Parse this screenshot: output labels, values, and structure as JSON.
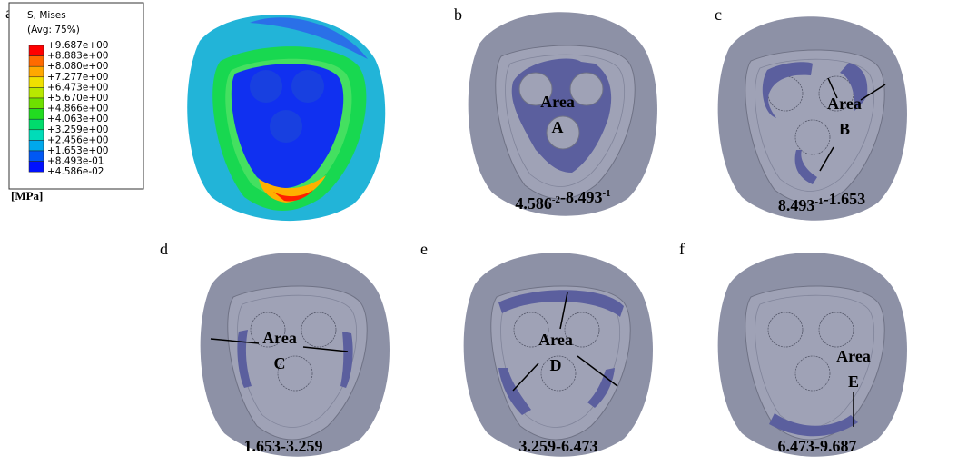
{
  "figure": {
    "legend": {
      "title": "S, Mises",
      "subtitle": "(Avg: 75%)",
      "labels": [
        "+9.687e+00",
        "+8.883e+00",
        "+8.080e+00",
        "+7.277e+00",
        "+6.473e+00",
        "+5.670e+00",
        "+4.866e+00",
        "+4.063e+00",
        "+3.259e+00",
        "+2.456e+00",
        "+1.653e+00",
        "+8.493e-01",
        "+4.586e-02"
      ],
      "colors": [
        "#ff0000",
        "#ff6a00",
        "#ffa800",
        "#f0e000",
        "#b8e800",
        "#6ee000",
        "#22dc20",
        "#00dc6c",
        "#00dcb8",
        "#00a8ec",
        "#0058f4",
        "#0010ff"
      ],
      "unit": "[MPa]"
    },
    "panels": [
      {
        "label": "a"
      },
      {
        "label": "b",
        "area": "Area",
        "area_id": "A",
        "range": [
          "4.586",
          {
            "sup": "-2"
          },
          "-8.493",
          {
            "sup": "-1"
          }
        ]
      },
      {
        "label": "c",
        "area": "Area",
        "area_id": "B",
        "range": [
          "8.493",
          {
            "sup": "-1"
          },
          "-1.653"
        ]
      },
      {
        "label": "d",
        "area": "Area",
        "area_id": "C",
        "range": [
          "1.653-3.259"
        ]
      },
      {
        "label": "e",
        "area": "Area",
        "area_id": "D",
        "range": [
          "3.259-6.473"
        ]
      },
      {
        "label": "f",
        "area": "Area",
        "area_id": "E",
        "range": [
          "6.473-9.687"
        ]
      }
    ]
  }
}
